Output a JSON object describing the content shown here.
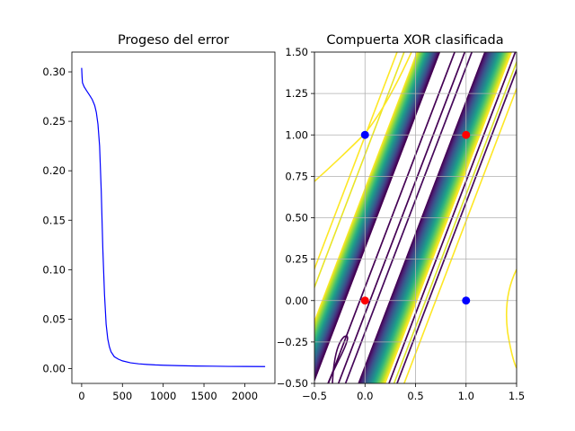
{
  "chart_data": [
    {
      "type": "line",
      "title": "Progeso del error",
      "xlabel": "",
      "ylabel": "",
      "xlim": [
        -120,
        2370
      ],
      "ylim": [
        -0.015,
        0.32
      ],
      "xticks": [
        0,
        500,
        1000,
        1500,
        2000
      ],
      "yticks": [
        0.0,
        0.05,
        0.1,
        0.15,
        0.2,
        0.25,
        0.3
      ],
      "xtick_labels": [
        "0",
        "500",
        "1000",
        "1500",
        "2000"
      ],
      "ytick_labels": [
        "0.00",
        "0.05",
        "0.10",
        "0.15",
        "0.20",
        "0.25",
        "0.30"
      ],
      "grid": false,
      "series": [
        {
          "color": "#0000ff",
          "x": [
            0,
            5,
            10,
            30,
            60,
            100,
            130,
            160,
            180,
            200,
            220,
            240,
            260,
            280,
            300,
            320,
            340,
            360,
            400,
            450,
            500,
            600,
            700,
            800,
            900,
            1000,
            1200,
            1400,
            1600,
            1800,
            2000,
            2250
          ],
          "y": [
            0.304,
            0.295,
            0.289,
            0.285,
            0.281,
            0.276,
            0.272,
            0.266,
            0.259,
            0.247,
            0.225,
            0.18,
            0.12,
            0.075,
            0.045,
            0.03,
            0.022,
            0.017,
            0.012,
            0.0095,
            0.0078,
            0.0058,
            0.0048,
            0.0042,
            0.0037,
            0.0034,
            0.0029,
            0.0026,
            0.0024,
            0.0022,
            0.0021,
            0.002
          ]
        }
      ]
    },
    {
      "type": "contour",
      "title": "Compuerta XOR clasificada",
      "xlabel": "",
      "ylabel": "",
      "xlim": [
        -0.5,
        1.5
      ],
      "ylim": [
        -0.5,
        1.5
      ],
      "xticks": [
        -0.5,
        0.0,
        0.5,
        1.0,
        1.5
      ],
      "yticks": [
        -0.5,
        -0.25,
        0.0,
        0.25,
        0.5,
        0.75,
        1.0,
        1.25,
        1.5
      ],
      "xtick_labels": [
        "−0.5",
        "0.0",
        "0.5",
        "1.0",
        "1.5"
      ],
      "ytick_labels": [
        "−0.50",
        "−0.25",
        "0.00",
        "0.25",
        "0.50",
        "0.75",
        "1.00",
        "1.25",
        "1.50"
      ],
      "grid": true,
      "colormap": "viridis",
      "points": [
        {
          "x": 0,
          "y": 0,
          "class": 0,
          "color": "#ff0000"
        },
        {
          "x": 1,
          "y": 1,
          "class": 0,
          "color": "#ff0000"
        },
        {
          "x": 0,
          "y": 1,
          "class": 1,
          "color": "#0000ff"
        },
        {
          "x": 1,
          "y": 0,
          "class": 1,
          "color": "#0000ff"
        }
      ]
    }
  ]
}
